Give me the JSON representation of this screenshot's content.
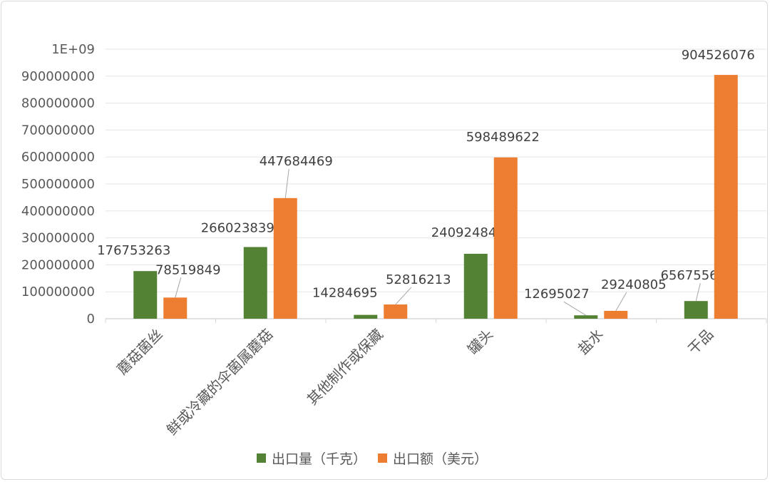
{
  "chart_data": {
    "type": "bar",
    "title": "",
    "xlabel": "",
    "ylabel": "",
    "ylim": [
      0,
      1000000000
    ],
    "yticks": [
      "0",
      "100000000",
      "200000000",
      "300000000",
      "400000000",
      "500000000",
      "600000000",
      "700000000",
      "800000000",
      "900000000",
      "1E+09"
    ],
    "grid": true,
    "legend_position": "bottom",
    "categories": [
      "蘑菇菌丝",
      "鲜或冷藏的伞菌属蘑菇",
      "其他制作或保藏",
      "罐头",
      "盐水",
      "干品"
    ],
    "series": [
      {
        "name": "出口量（千克）",
        "color": "#548235",
        "values": [
          176753263,
          266023839,
          14284695,
          240924849,
          12695027,
          65675566
        ]
      },
      {
        "name": "出口额（美元）",
        "color": "#ED7D31",
        "values": [
          78519849,
          447684469,
          52816213,
          598489622,
          29240805,
          904526076
        ]
      }
    ]
  }
}
